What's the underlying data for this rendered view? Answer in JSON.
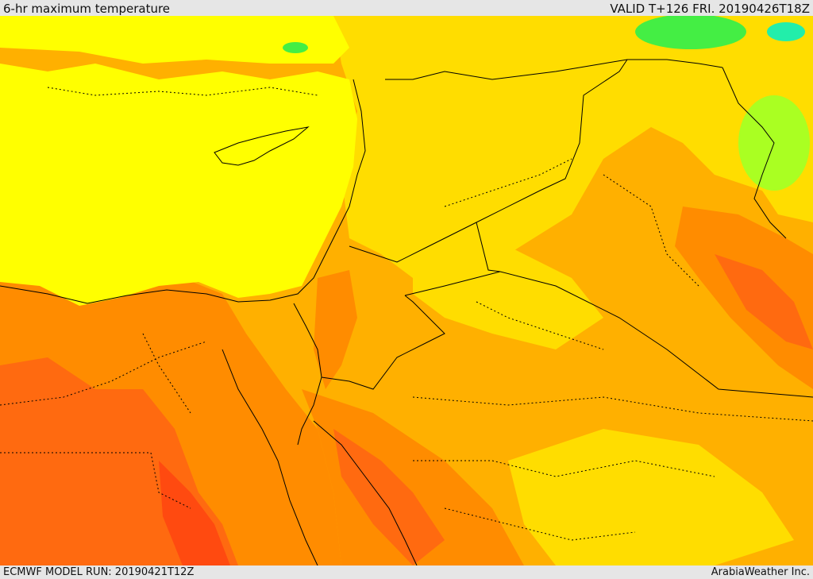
{
  "header": {
    "product_title": "6-hr maximum temperature",
    "valid_label": "VALID T+126 FRI. 20190426T18Z"
  },
  "footer": {
    "model_run": "ECMWF MODEL RUN: 20190421T12Z",
    "credit": "ArabiaWeather Inc."
  },
  "map": {
    "color_scale": {
      "yellow": "#ffff00",
      "gold": "#ffdd00",
      "amber": "#ffb000",
      "orange": "#ff8c00",
      "dark_orange": "#ff6a10",
      "red_orange": "#ff4a10",
      "green": "#44ee44",
      "cyan": "#22eeaa",
      "light_green": "#aaff22"
    },
    "boundary_color": "#000000"
  }
}
